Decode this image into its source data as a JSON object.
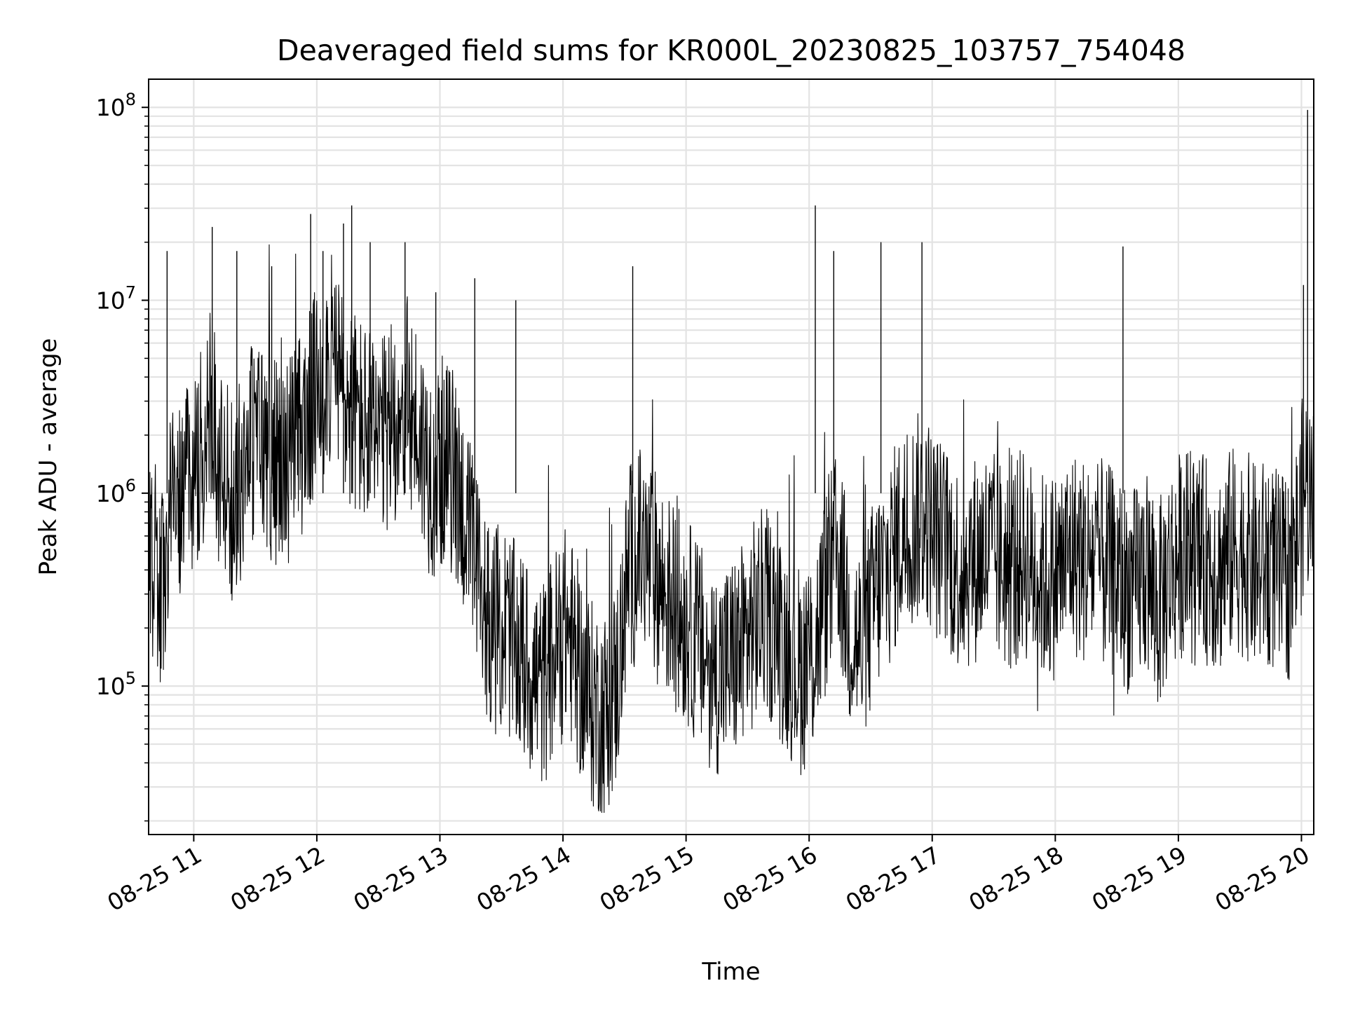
{
  "chart_data": {
    "type": "line",
    "title": "Deaveraged field sums for KR000L_20230825_103757_754048",
    "xlabel": "Time",
    "ylabel": "Peak ADU - average",
    "x_axis": {
      "type": "date",
      "range": [
        "2023-08-25T10:38",
        "2023-08-25T20:06"
      ],
      "ticks": [
        {
          "value": "2023-08-25T11:00",
          "label": "08-25 11"
        },
        {
          "value": "2023-08-25T12:00",
          "label": "08-25 12"
        },
        {
          "value": "2023-08-25T13:00",
          "label": "08-25 13"
        },
        {
          "value": "2023-08-25T14:00",
          "label": "08-25 14"
        },
        {
          "value": "2023-08-25T15:00",
          "label": "08-25 15"
        },
        {
          "value": "2023-08-25T16:00",
          "label": "08-25 16"
        },
        {
          "value": "2023-08-25T17:00",
          "label": "08-25 17"
        },
        {
          "value": "2023-08-25T18:00",
          "label": "08-25 18"
        },
        {
          "value": "2023-08-25T19:00",
          "label": "08-25 19"
        },
        {
          "value": "2023-08-25T20:00",
          "label": "08-25 20"
        }
      ]
    },
    "y_axis": {
      "scale": "log",
      "range": [
        17000,
        140000000
      ],
      "ticks": [
        {
          "value": 100000,
          "base": "10",
          "exp": "5"
        },
        {
          "value": 1000000,
          "base": "10",
          "exp": "6"
        },
        {
          "value": 10000000,
          "base": "10",
          "exp": "7"
        },
        {
          "value": 100000000,
          "base": "10",
          "exp": "8"
        }
      ]
    },
    "grid": true,
    "line_color": "#000000",
    "grid_color": "#e3e3e3",
    "series": [
      {
        "x": [
          "2023-08-25T10:38",
          "2023-08-25T10:44",
          "2023-08-25T10:50",
          "2023-08-25T10:56",
          "2023-08-25T11:02",
          "2023-08-25T11:08",
          "2023-08-25T11:14",
          "2023-08-25T11:20",
          "2023-08-25T11:26",
          "2023-08-25T11:32",
          "2023-08-25T11:38",
          "2023-08-25T11:44",
          "2023-08-25T11:50",
          "2023-08-25T11:56",
          "2023-08-25T12:02",
          "2023-08-25T12:08",
          "2023-08-25T12:14",
          "2023-08-25T12:20",
          "2023-08-25T12:26",
          "2023-08-25T12:32",
          "2023-08-25T12:38",
          "2023-08-25T12:44",
          "2023-08-25T12:50",
          "2023-08-25T12:56",
          "2023-08-25T13:02",
          "2023-08-25T13:08",
          "2023-08-25T13:14",
          "2023-08-25T13:20",
          "2023-08-25T13:26",
          "2023-08-25T13:32",
          "2023-08-25T13:38",
          "2023-08-25T13:44",
          "2023-08-25T13:50",
          "2023-08-25T13:56",
          "2023-08-25T14:02",
          "2023-08-25T14:08",
          "2023-08-25T14:14",
          "2023-08-25T14:20",
          "2023-08-25T14:26",
          "2023-08-25T14:32",
          "2023-08-25T14:38",
          "2023-08-25T14:44",
          "2023-08-25T14:50",
          "2023-08-25T14:56",
          "2023-08-25T15:02",
          "2023-08-25T15:08",
          "2023-08-25T15:14",
          "2023-08-25T15:20",
          "2023-08-25T15:26",
          "2023-08-25T15:32",
          "2023-08-25T15:38",
          "2023-08-25T15:44",
          "2023-08-25T15:50",
          "2023-08-25T15:56",
          "2023-08-25T16:02",
          "2023-08-25T16:08",
          "2023-08-25T16:14",
          "2023-08-25T16:20",
          "2023-08-25T16:26",
          "2023-08-25T16:32",
          "2023-08-25T16:38",
          "2023-08-25T16:44",
          "2023-08-25T16:50",
          "2023-08-25T16:56",
          "2023-08-25T17:02",
          "2023-08-25T17:08",
          "2023-08-25T17:14",
          "2023-08-25T17:20",
          "2023-08-25T17:26",
          "2023-08-25T17:32",
          "2023-08-25T17:38",
          "2023-08-25T17:44",
          "2023-08-25T17:50",
          "2023-08-25T17:56",
          "2023-08-25T18:02",
          "2023-08-25T18:08",
          "2023-08-25T18:14",
          "2023-08-25T18:20",
          "2023-08-25T18:26",
          "2023-08-25T18:32",
          "2023-08-25T18:38",
          "2023-08-25T18:44",
          "2023-08-25T18:50",
          "2023-08-25T18:56",
          "2023-08-25T19:02",
          "2023-08-25T19:08",
          "2023-08-25T19:14",
          "2023-08-25T19:20",
          "2023-08-25T19:26",
          "2023-08-25T19:32",
          "2023-08-25T19:38",
          "2023-08-25T19:44",
          "2023-08-25T19:50",
          "2023-08-25T19:56",
          "2023-08-25T20:02",
          "2023-08-25T20:06"
        ],
        "y": [
          400000,
          300000,
          900000,
          1200000,
          1500000,
          2500000,
          1200000,
          900000,
          1800000,
          2000000,
          1500000,
          1400000,
          1800000,
          2500000,
          4000000,
          5000000,
          3000000,
          2500000,
          2000000,
          1800000,
          2500000,
          3000000,
          2000000,
          1200000,
          1500000,
          1200000,
          600000,
          300000,
          200000,
          200000,
          150000,
          120000,
          100000,
          150000,
          200000,
          120000,
          80000,
          70000,
          100000,
          400000,
          500000,
          400000,
          300000,
          250000,
          200000,
          150000,
          120000,
          130000,
          150000,
          200000,
          250000,
          200000,
          150000,
          120000,
          150000,
          300000,
          500000,
          200000,
          150000,
          300000,
          400000,
          600000,
          700000,
          800000,
          600000,
          500000,
          400000,
          450000,
          500000,
          450000,
          400000,
          500000,
          400000,
          350000,
          400000,
          500000,
          450000,
          450000,
          400000,
          350000,
          300000,
          400000,
          250000,
          400000,
          500000,
          450000,
          450000,
          400000,
          500000,
          500000,
          400000,
          450000,
          350000,
          400000,
          1200000,
          800000
        ]
      },
      {
        "x": [
          "2023-08-25T10:47",
          "2023-08-25T11:09",
          "2023-08-25T11:21",
          "2023-08-25T11:38",
          "2023-08-25T11:57",
          "2023-08-25T12:03",
          "2023-08-25T12:13",
          "2023-08-25T12:17",
          "2023-08-25T12:26",
          "2023-08-25T12:43",
          "2023-08-25T12:58",
          "2023-08-25T13:17",
          "2023-08-25T13:37",
          "2023-08-25T14:34",
          "2023-08-25T16:03",
          "2023-08-25T16:12",
          "2023-08-25T16:35",
          "2023-08-25T16:55",
          "2023-08-25T18:33",
          "2023-08-25T20:03",
          "2023-08-25T20:01"
        ],
        "y": [
          18000000,
          24000000,
          18000000,
          15000000,
          28000000,
          18000000,
          25000000,
          31000000,
          20000000,
          20000000,
          11000000,
          13000000,
          10000000,
          15000000,
          31000000,
          18000000,
          20000000,
          20000000,
          19000000,
          97000000,
          12000000
        ]
      }
    ]
  }
}
